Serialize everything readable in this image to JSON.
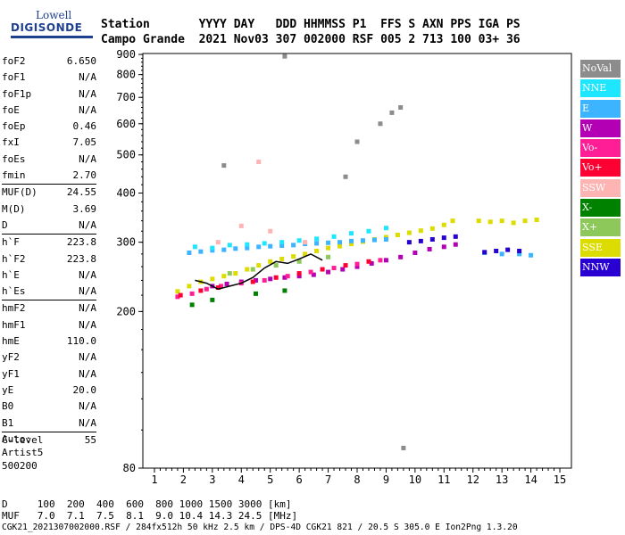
{
  "logo": {
    "line1": "Lowell",
    "line2": "DIGISONDE"
  },
  "header": {
    "line1": "Station       YYYY DAY   DDD HHMMSS P1  FFS S AXN PPS IGA PS",
    "line2": "Campo Grande  2021 Nov03 307 002000 RSF 005 2 713 100 03+ 36"
  },
  "params_groups": [
    [
      {
        "label": "foF2",
        "value": "6.650"
      },
      {
        "label": "foF1",
        "value": "N/A"
      },
      {
        "label": "foF1p",
        "value": "N/A"
      },
      {
        "label": "foE",
        "value": "N/A"
      },
      {
        "label": "foEp",
        "value": "0.46"
      },
      {
        "label": "fxI",
        "value": "7.05"
      },
      {
        "label": "foEs",
        "value": "N/A"
      },
      {
        "label": "fmin",
        "value": "2.70"
      }
    ],
    [
      {
        "label": "MUF(D)",
        "value": "24.55"
      },
      {
        "label": "M(D)",
        "value": "3.69"
      },
      {
        "label": "D",
        "value": "N/A"
      }
    ],
    [
      {
        "label": "h`F",
        "value": "223.8"
      },
      {
        "label": "h`F2",
        "value": "223.8"
      },
      {
        "label": "h`E",
        "value": "N/A"
      },
      {
        "label": "h`Es",
        "value": "N/A"
      }
    ],
    [
      {
        "label": "hmF2",
        "value": "N/A"
      },
      {
        "label": "hmF1",
        "value": "N/A"
      },
      {
        "label": "hmE",
        "value": "110.0"
      },
      {
        "label": "yF2",
        "value": "N/A"
      },
      {
        "label": "yF1",
        "value": "N/A"
      },
      {
        "label": "yE",
        "value": "20.0"
      },
      {
        "label": "B0",
        "value": "N/A"
      },
      {
        "label": "B1",
        "value": "N/A"
      }
    ],
    [
      {
        "label": "C-level",
        "value": "55"
      }
    ]
  ],
  "auto": {
    "line1": "Auto:",
    "line2": "Artist5",
    "line3": "500200"
  },
  "legend": [
    {
      "label": "NoVal",
      "color": "#8c8c8c"
    },
    {
      "label": "NNE",
      "color": "#1ee6ff"
    },
    {
      "label": "E",
      "color": "#3cb4ff"
    },
    {
      "label": "W",
      "color": "#b400b4"
    },
    {
      "label": "Vo-",
      "color": "#ff1e96"
    },
    {
      "label": "Vo+",
      "color": "#ff0032"
    },
    {
      "label": "SSW",
      "color": "#ffb4b4"
    },
    {
      "label": "X-",
      "color": "#008200"
    },
    {
      "label": "X+",
      "color": "#8cc85a"
    },
    {
      "label": "SSE",
      "color": "#dcdc00"
    },
    {
      "label": "NNW",
      "color": "#2800d2"
    }
  ],
  "footer": {
    "line1": "D     100  200  400  600  800 1000 1500 3000 [km]",
    "line2": "MUF   7.0  7.1  7.5  8.1  9.0 10.4 14.3 24.5 [MHz]",
    "line3": "CGK21_2021307002000.RSF / 284fx512h 50 kHz 2.5 km / DPS-4D CGK21 821 / 20.5 S 305.0 E Ion2Png 1.3.20"
  },
  "chart_data": {
    "type": "scatter",
    "title": "",
    "xlabel": "",
    "ylabel": "",
    "xlim": [
      0.6,
      15.4
    ],
    "ylim": [
      80,
      905
    ],
    "y_scale": "log",
    "x_ticks": [
      "1",
      "2",
      "3",
      "4",
      "5",
      "6",
      "7",
      "8",
      "9",
      "10",
      "11",
      "12",
      "13",
      "14",
      "15"
    ],
    "y_ticks": [
      "80",
      "200",
      "300",
      "400",
      "500",
      "600",
      "700",
      "800",
      "900"
    ],
    "series": [
      {
        "color": "#dcdc00",
        "values": [
          [
            1.8,
            225
          ],
          [
            2.2,
            232
          ],
          [
            2.6,
            238
          ],
          [
            3.0,
            242
          ],
          [
            3.4,
            246
          ],
          [
            3.8,
            250
          ],
          [
            4.2,
            256
          ],
          [
            4.6,
            262
          ],
          [
            5.0,
            268
          ],
          [
            5.4,
            272
          ],
          [
            5.8,
            276
          ],
          [
            6.2,
            280
          ],
          [
            6.6,
            285
          ],
          [
            7.0,
            290
          ],
          [
            7.4,
            293
          ],
          [
            7.8,
            297
          ],
          [
            8.2,
            301
          ],
          [
            8.6,
            305
          ],
          [
            9.0,
            309
          ],
          [
            9.4,
            313
          ],
          [
            9.8,
            317
          ],
          [
            10.2,
            321
          ],
          [
            10.6,
            325
          ],
          [
            11.0,
            332
          ],
          [
            11.3,
            340
          ],
          [
            12.2,
            340
          ],
          [
            12.6,
            338
          ],
          [
            13.0,
            340
          ],
          [
            13.4,
            336
          ],
          [
            13.8,
            340
          ],
          [
            14.2,
            342
          ]
        ]
      },
      {
        "color": "#b400b4",
        "values": [
          [
            3.0,
            232
          ],
          [
            3.5,
            235
          ],
          [
            4.0,
            238
          ],
          [
            4.5,
            240
          ],
          [
            5.0,
            242
          ],
          [
            5.5,
            244
          ],
          [
            6.0,
            246
          ],
          [
            6.5,
            248
          ],
          [
            7.0,
            252
          ],
          [
            7.5,
            256
          ],
          [
            8.0,
            260
          ],
          [
            8.5,
            265
          ],
          [
            9.0,
            270
          ],
          [
            9.5,
            275
          ],
          [
            10.0,
            282
          ],
          [
            10.5,
            288
          ],
          [
            11.0,
            292
          ],
          [
            11.4,
            296
          ]
        ]
      },
      {
        "color": "#3cb4ff",
        "values": [
          [
            2.2,
            282
          ],
          [
            2.6,
            284
          ],
          [
            3.0,
            286
          ],
          [
            3.4,
            287
          ],
          [
            3.8,
            289
          ],
          [
            4.2,
            290
          ],
          [
            4.6,
            292
          ],
          [
            5.0,
            293
          ],
          [
            5.4,
            294
          ],
          [
            5.8,
            295
          ],
          [
            6.2,
            297
          ],
          [
            6.6,
            298
          ],
          [
            7.0,
            299
          ],
          [
            7.4,
            300
          ],
          [
            7.8,
            302
          ],
          [
            8.2,
            303
          ],
          [
            8.6,
            304
          ],
          [
            9.0,
            305
          ],
          [
            12.4,
            282
          ],
          [
            13.0,
            280
          ],
          [
            13.6,
            280
          ],
          [
            14.0,
            278
          ]
        ]
      },
      {
        "color": "#1ee6ff",
        "values": [
          [
            2.4,
            292
          ],
          [
            3.0,
            290
          ],
          [
            3.6,
            295
          ],
          [
            4.2,
            296
          ],
          [
            4.8,
            298
          ],
          [
            5.4,
            300
          ],
          [
            6.0,
            303
          ],
          [
            6.6,
            306
          ],
          [
            7.2,
            310
          ],
          [
            7.8,
            316
          ],
          [
            8.4,
            320
          ],
          [
            9.0,
            326
          ]
        ]
      },
      {
        "color": "#2800d2",
        "values": [
          [
            9.8,
            300
          ],
          [
            10.2,
            302
          ],
          [
            10.6,
            305
          ],
          [
            11.0,
            308
          ],
          [
            11.4,
            310
          ],
          [
            12.4,
            283
          ],
          [
            12.8,
            285
          ],
          [
            13.2,
            287
          ],
          [
            13.6,
            285
          ]
        ]
      },
      {
        "color": "#ff1e96",
        "values": [
          [
            1.8,
            218
          ],
          [
            2.3,
            222
          ],
          [
            2.8,
            228
          ],
          [
            3.3,
            232
          ],
          [
            4.0,
            236
          ],
          [
            4.8,
            240
          ],
          [
            5.6,
            246
          ],
          [
            6.4,
            252
          ],
          [
            7.2,
            258
          ],
          [
            8.0,
            264
          ],
          [
            8.8,
            270
          ]
        ]
      },
      {
        "color": "#ff0032",
        "values": [
          [
            1.9,
            220
          ],
          [
            2.6,
            226
          ],
          [
            3.2,
            230
          ],
          [
            4.4,
            238
          ],
          [
            5.2,
            244
          ],
          [
            6.0,
            250
          ],
          [
            6.8,
            256
          ],
          [
            7.6,
            262
          ],
          [
            8.4,
            268
          ]
        ]
      },
      {
        "color": "#ffb4b4",
        "values": [
          [
            3.2,
            300
          ],
          [
            4.0,
            330
          ],
          [
            4.6,
            480
          ],
          [
            5.0,
            320
          ],
          [
            6.2,
            300
          ]
        ]
      },
      {
        "color": "#008200",
        "values": [
          [
            2.3,
            208
          ],
          [
            3.0,
            214
          ],
          [
            4.5,
            222
          ],
          [
            5.5,
            226
          ]
        ]
      },
      {
        "color": "#8cc85a",
        "values": [
          [
            3.6,
            250
          ],
          [
            4.4,
            256
          ],
          [
            5.2,
            262
          ],
          [
            6.0,
            268
          ],
          [
            7.0,
            275
          ]
        ]
      },
      {
        "color": "#8c8c8c",
        "values": [
          [
            5.5,
            890
          ],
          [
            8.8,
            600
          ],
          [
            9.2,
            640
          ],
          [
            9.5,
            660
          ],
          [
            8.0,
            540
          ],
          [
            7.6,
            440
          ],
          [
            9.6,
            90
          ],
          [
            3.4,
            470
          ]
        ]
      },
      {
        "color": "#000000",
        "values": [
          [
            2.4,
            240
          ],
          [
            2.8,
            236
          ],
          [
            3.2,
            228
          ],
          [
            3.6,
            232
          ],
          [
            4.0,
            236
          ],
          [
            4.4,
            244
          ],
          [
            4.8,
            258
          ],
          [
            5.2,
            268
          ],
          [
            5.6,
            265
          ],
          [
            6.0,
            272
          ],
          [
            6.4,
            280
          ],
          [
            6.8,
            270
          ]
        ]
      }
    ]
  }
}
